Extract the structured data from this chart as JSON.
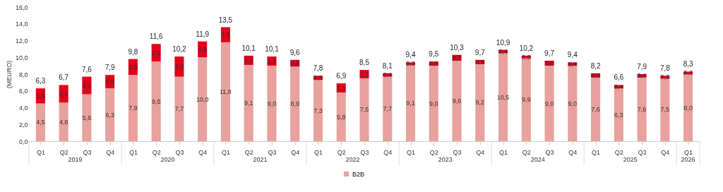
{
  "chart_data": {
    "type": "bar",
    "stacked": true,
    "ylabel": "(MEURO)",
    "legend": "bottom",
    "categories": [
      "Q1",
      "Q2",
      "Q3",
      "Q4",
      "Q1",
      "Q2",
      "Q3",
      "Q4",
      "Q1",
      "Q2",
      "Q3",
      "Q4",
      "Q1",
      "Q2",
      "Q3",
      "Q4",
      "Q1",
      "Q2",
      "Q3",
      "Q4",
      "Q1",
      "Q2",
      "Q3",
      "Q4",
      "Q1",
      "Q2",
      "Q3",
      "Q4",
      "Q1"
    ],
    "annotations": [
      "2019",
      "2020",
      "2021",
      "2022",
      "2023",
      "2024",
      "2025",
      "2026"
    ],
    "ylim": [
      0,
      16
    ],
    "yticks": [
      {
        "value": 0,
        "label": "0,0"
      },
      {
        "value": 2,
        "label": "2,0"
      },
      {
        "value": 4,
        "label": "4,0"
      },
      {
        "value": 6,
        "label": "6,0"
      },
      {
        "value": 8,
        "label": "8,0"
      },
      {
        "value": 10,
        "label": "10,0"
      },
      {
        "value": 12,
        "label": "12,0"
      },
      {
        "value": 14,
        "label": "14,0"
      },
      {
        "value": 16,
        "label": "16,0"
      }
    ],
    "series": [
      {
        "name": "B2B",
        "color": "#e8a19d",
        "values": [
          4.5,
          4.6,
          5.6,
          6.3,
          7.9,
          9.5,
          7.7,
          10.0,
          11.8,
          9.1,
          9.0,
          8.9,
          7.3,
          5.8,
          7.5,
          7.7,
          9.1,
          9.0,
          9.6,
          9.2,
          10.5,
          9.9,
          9.0,
          9.0,
          7.6,
          6.3,
          7.6,
          7.5,
          8.0
        ],
        "value_labels": [
          "4,5",
          "4,6",
          "5,6",
          "6,3",
          "7,9",
          "9,5",
          "7,7",
          "10,0",
          "11,8",
          "9,1",
          "9,0",
          "8,9",
          "7,3",
          "5,8",
          "7,5",
          "7,7",
          "9,1",
          "9,0",
          "9,6",
          "9,2",
          "10,5",
          "9,9",
          "9,0",
          "9,0",
          "7,6",
          "6,3",
          "7,6",
          "7,5",
          "8,0"
        ]
      },
      {
        "color": "#e2001a",
        "values": [
          1.8,
          2.1,
          2.1,
          1.6,
          1.9,
          2.1,
          2.4,
          1.9,
          1.8,
          1.1,
          1.1,
          0.8,
          0.5,
          1.1,
          1.0,
          0.4,
          0.3,
          0.5,
          0.7,
          0.5,
          0.4,
          0.3,
          0.6,
          0.4,
          0.5,
          0.4,
          0.4,
          0.3,
          0.3
        ],
        "value_labels": [
          "1,8",
          "2,1",
          "2,1",
          "1,6",
          "1,9",
          "2,1",
          "2,4",
          "1,9",
          "1,8",
          "1,1",
          "1,1",
          "0,8",
          "0,5",
          "1,1",
          "1,0",
          "0,4",
          "0,3",
          "0,5",
          "0,7",
          "0,5",
          "0,4",
          "0,3",
          "0,6",
          "0,4",
          "0,5",
          "0,4",
          "0,4",
          "0,3",
          "0,3"
        ]
      }
    ],
    "totals": [
      "6,3",
      "6,7",
      "7,6",
      "7,9",
      "9,8",
      "11,6",
      "10,2",
      "11,9",
      "13,5",
      "10,1",
      "10,1",
      "9,6",
      "7,8",
      "6,9",
      "8,5",
      "8,1",
      "9,4",
      "9,5",
      "10,3",
      "9,7",
      "10,9",
      "10,2",
      "9,7",
      "9,4",
      "8,2",
      "6,6",
      "7,9",
      "7,8",
      "8,3"
    ]
  }
}
